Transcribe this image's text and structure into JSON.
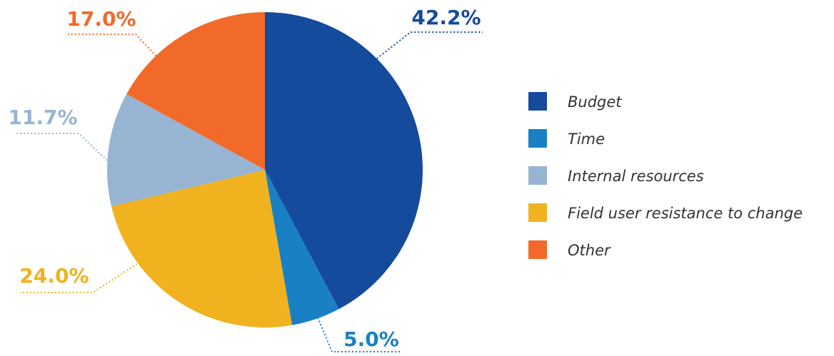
{
  "chart_data": {
    "type": "pie",
    "categories": [
      "Budget",
      "Time",
      "Field user resistance to change",
      "Internal resources",
      "Other"
    ],
    "values": [
      42.2,
      5.0,
      24.0,
      11.7,
      17.0
    ],
    "value_labels": [
      "42.2%",
      "5.0%",
      "24.0%",
      "11.7%",
      "17.0%"
    ],
    "colors": [
      "#154b9c",
      "#1a80c4",
      "#f0b21f",
      "#97b4d3",
      "#f26a2a"
    ],
    "legend": [
      "Budget",
      "Time",
      "Internal resources",
      "Field user resistance to change",
      "Other"
    ],
    "legend_position": "right"
  }
}
